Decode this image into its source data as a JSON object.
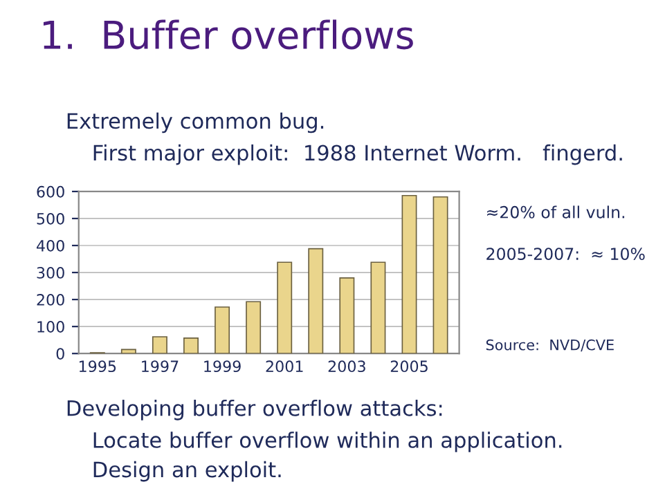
{
  "chart_data": {
    "type": "bar",
    "title": "1.  Buffer overflows",
    "categories": [
      "1995",
      null,
      "1997",
      null,
      "1999",
      null,
      "2001",
      null,
      "2003",
      null,
      "2005",
      null
    ],
    "values": [
      3,
      15,
      62,
      57,
      172,
      192,
      338,
      388,
      280,
      338,
      585,
      580
    ],
    "color": "#ead58c",
    "ylim": [
      0,
      600
    ],
    "yticks": [
      0,
      100,
      200,
      300,
      400,
      500,
      600
    ],
    "grid": "y",
    "annotations": [
      "Extremely common bug.",
      "First major exploit:  1988 Internet Worm.   fingerd.",
      "≈20% of all vuln.",
      "2005-2007:  ≈ 10%",
      "Source:  NVD/CVE",
      "Developing buffer overflow attacks:",
      "Locate buffer overflow within an application.",
      "Design an exploit."
    ]
  }
}
